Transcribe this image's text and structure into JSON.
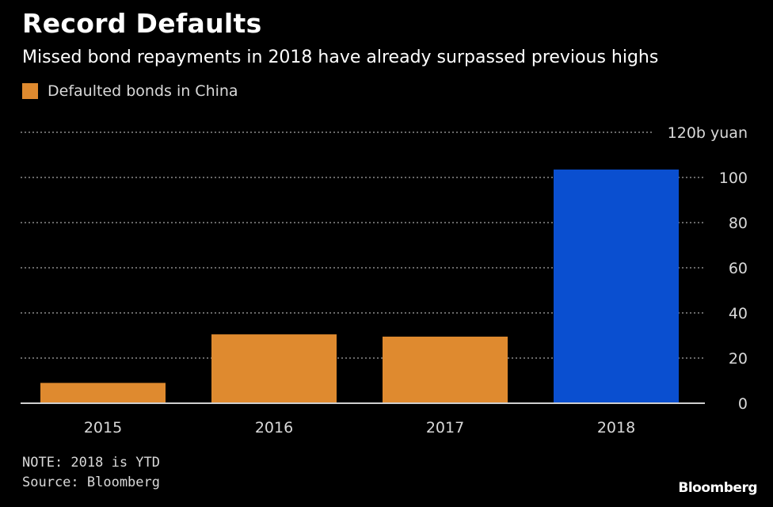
{
  "title": "Record Defaults",
  "subtitle": "Missed bond repayments in 2018 have already surpassed previous highs",
  "legend": {
    "label": "Defaulted bonds in China",
    "color": "#df8a2f"
  },
  "note": "NOTE: 2018 is YTD",
  "source": "Source: Bloomberg",
  "brand": "Bloomberg",
  "colors": {
    "background": "#000000",
    "bar_default": "#df8a2f",
    "bar_highlight": "#0a4fd0",
    "grid": "#8a8a8a",
    "tick_text": "#d9d9d9"
  },
  "chart_data": {
    "type": "bar",
    "categories": [
      "2015",
      "2016",
      "2017",
      "2018"
    ],
    "series": [
      {
        "name": "Defaulted bonds in China",
        "values": [
          9,
          30.5,
          29.5,
          103.5
        ]
      }
    ],
    "highlight_category": "2018",
    "ylim": [
      0,
      120
    ],
    "yticks": [
      0,
      20,
      40,
      60,
      80,
      100,
      120
    ],
    "ytick_labels": [
      "0",
      "20",
      "40",
      "60",
      "80",
      "100",
      "120b yuan"
    ],
    "y_axis_position": "right",
    "grid": true,
    "xlabel": "",
    "ylabel": ""
  }
}
